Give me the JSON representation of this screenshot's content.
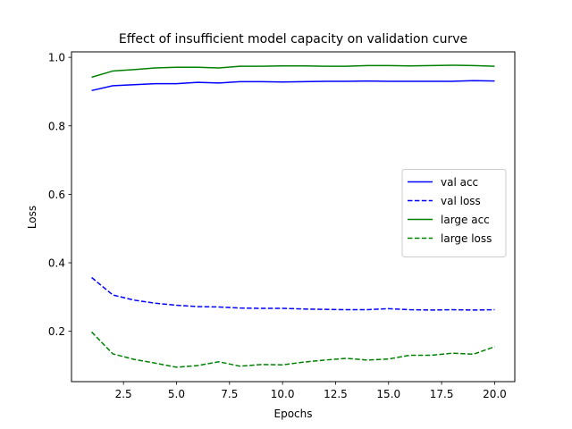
{
  "chart_data": {
    "type": "line",
    "title": "Effect of insufficient model capacity on validation curve",
    "xlabel": "Epochs",
    "ylabel": "Loss",
    "xlim": [
      0.05,
      20.95
    ],
    "ylim": [
      0.053,
      1.016
    ],
    "xticks": [
      2.5,
      5.0,
      7.5,
      10.0,
      12.5,
      15.0,
      17.5,
      20.0
    ],
    "xtick_labels": [
      "2.5",
      "5.0",
      "7.5",
      "10.0",
      "12.5",
      "15.0",
      "17.5",
      "20.0"
    ],
    "yticks": [
      0.2,
      0.4,
      0.6,
      0.8,
      1.0
    ],
    "ytick_labels": [
      "0.2",
      "0.4",
      "0.6",
      "0.8",
      "1.0"
    ],
    "grid": false,
    "legend_position": "center-right",
    "x": [
      1,
      2,
      3,
      4,
      5,
      6,
      7,
      8,
      9,
      10,
      11,
      12,
      13,
      14,
      15,
      16,
      17,
      18,
      19,
      20
    ],
    "series": [
      {
        "name": "val acc",
        "color": "#0000ff",
        "style": "solid",
        "values": [
          0.903,
          0.917,
          0.92,
          0.923,
          0.923,
          0.927,
          0.925,
          0.929,
          0.929,
          0.928,
          0.929,
          0.93,
          0.93,
          0.931,
          0.93,
          0.93,
          0.93,
          0.93,
          0.932,
          0.931
        ]
      },
      {
        "name": "val loss",
        "color": "#0000ff",
        "style": "dashed",
        "values": [
          0.357,
          0.306,
          0.291,
          0.282,
          0.276,
          0.272,
          0.271,
          0.268,
          0.267,
          0.267,
          0.265,
          0.264,
          0.263,
          0.263,
          0.266,
          0.263,
          0.262,
          0.263,
          0.262,
          0.263
        ]
      },
      {
        "name": "large acc",
        "color": "#008000",
        "style": "solid",
        "values": [
          0.942,
          0.96,
          0.964,
          0.969,
          0.971,
          0.971,
          0.969,
          0.974,
          0.974,
          0.975,
          0.975,
          0.974,
          0.974,
          0.976,
          0.976,
          0.975,
          0.976,
          0.977,
          0.976,
          0.974
        ]
      },
      {
        "name": "large loss",
        "color": "#008000",
        "style": "dashed",
        "values": [
          0.198,
          0.134,
          0.118,
          0.107,
          0.095,
          0.1,
          0.111,
          0.098,
          0.103,
          0.102,
          0.11,
          0.116,
          0.121,
          0.116,
          0.119,
          0.13,
          0.13,
          0.136,
          0.133,
          0.155
        ]
      }
    ]
  }
}
